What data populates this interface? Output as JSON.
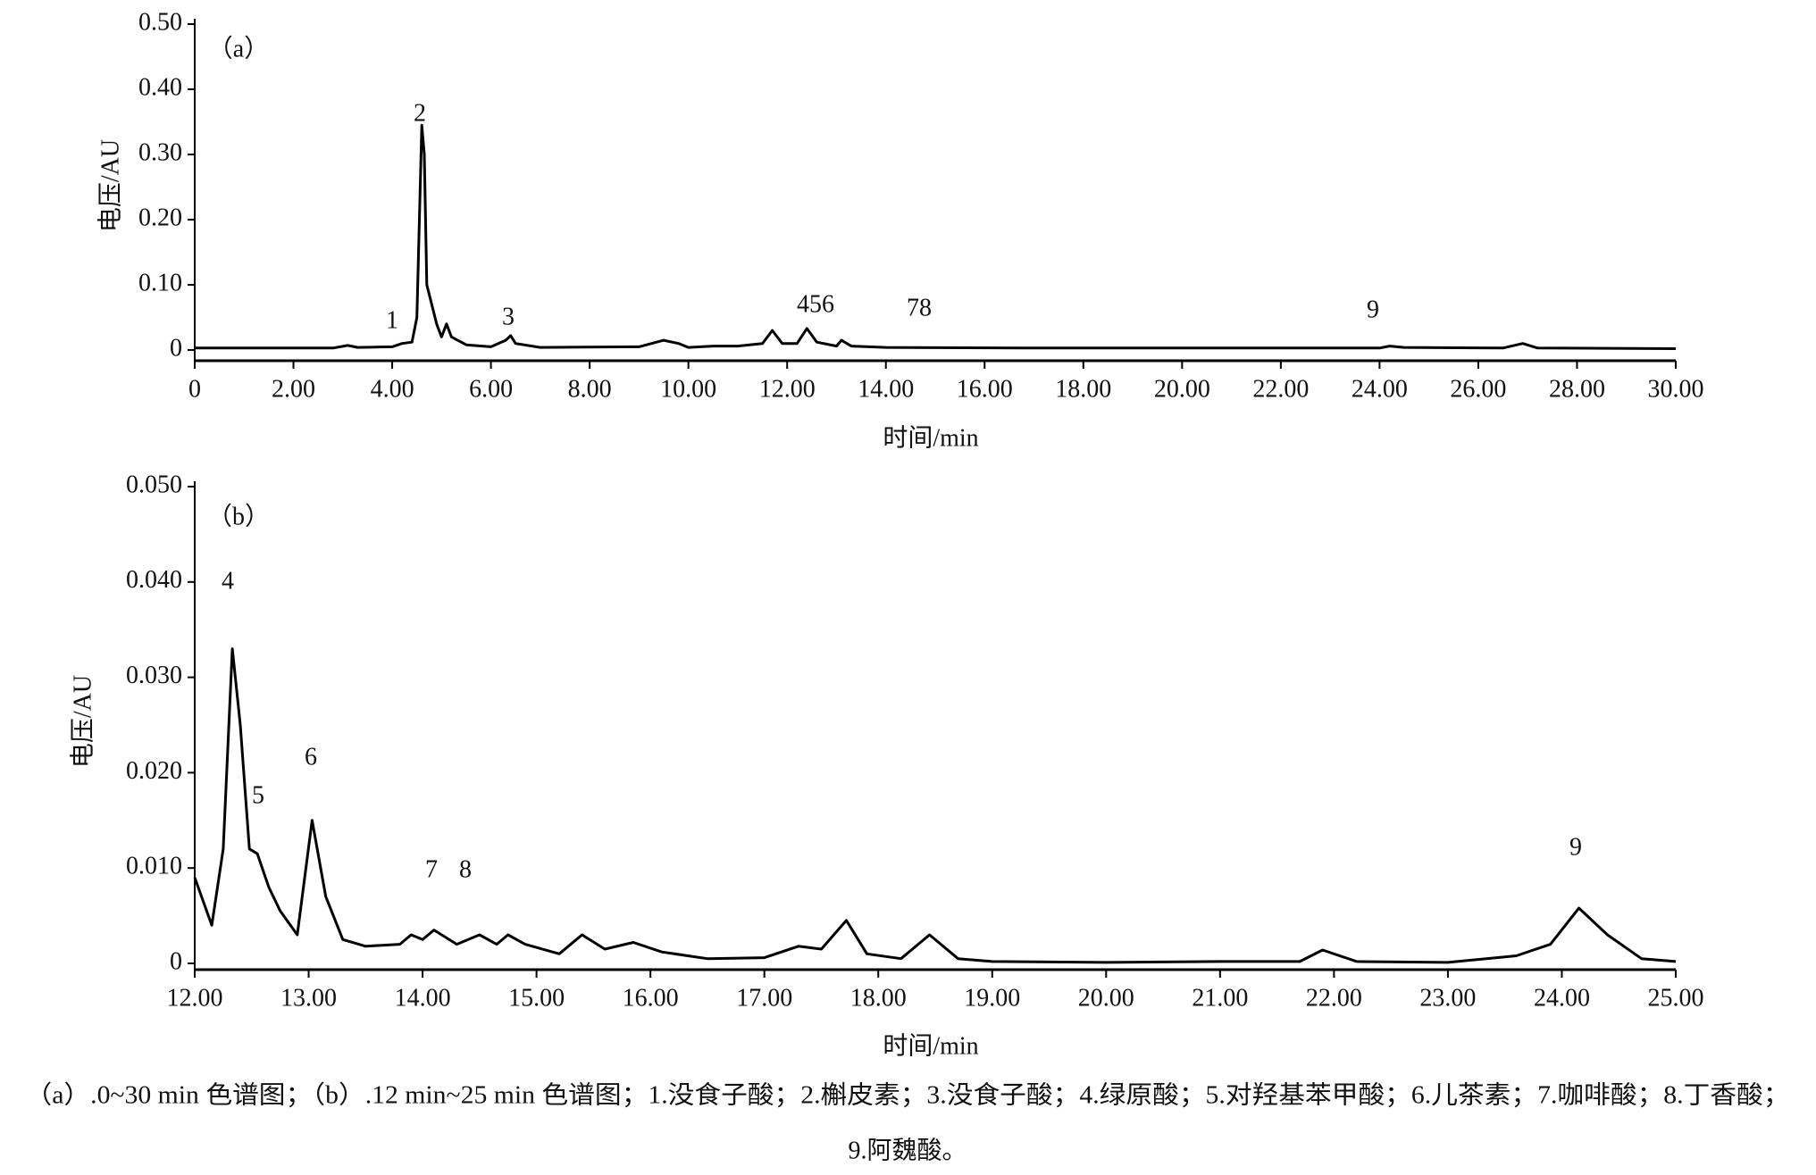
{
  "chart_data": [
    {
      "type": "line",
      "xlabel": "时间/min",
      "ylabel": "电压/AU",
      "annotations": [
        "（a）",
        "1",
        "2",
        "3",
        "456",
        "78",
        "9"
      ],
      "x": [
        0,
        2.8,
        3.1,
        3.3,
        4.0,
        4.2,
        4.4,
        4.5,
        4.6,
        4.65,
        4.7,
        4.8,
        4.9,
        5.0,
        5.1,
        5.2,
        5.5,
        6.0,
        6.3,
        6.4,
        6.5,
        7.0,
        9.0,
        9.5,
        9.8,
        10.0,
        10.5,
        11.0,
        11.5,
        11.7,
        11.9,
        12.2,
        12.4,
        12.6,
        13.0,
        13.1,
        13.3,
        14.0,
        17.0,
        24.0,
        24.2,
        24.5,
        26.5,
        26.9,
        27.2,
        30.0
      ],
      "values": [
        0.003,
        0.003,
        0.007,
        0.004,
        0.005,
        0.01,
        0.012,
        0.05,
        0.345,
        0.3,
        0.1,
        0.07,
        0.04,
        0.02,
        0.04,
        0.02,
        0.008,
        0.005,
        0.015,
        0.022,
        0.01,
        0.004,
        0.005,
        0.015,
        0.01,
        0.004,
        0.006,
        0.006,
        0.01,
        0.03,
        0.01,
        0.01,
        0.033,
        0.012,
        0.006,
        0.015,
        0.006,
        0.004,
        0.003,
        0.003,
        0.006,
        0.004,
        0.003,
        0.01,
        0.003,
        0.002
      ],
      "color": "#000000",
      "xlim": [
        0,
        30
      ],
      "xticks": [
        0,
        {
          "value": 2,
          "label": "2.00"
        },
        {
          "value": 4,
          "label": "4.00"
        },
        {
          "value": 6,
          "label": "6.00"
        },
        {
          "value": 8,
          "label": "8.00"
        },
        {
          "value": 10,
          "label": "10.00"
        },
        {
          "value": 12,
          "label": "12.00"
        },
        {
          "value": 14,
          "label": "14.00"
        },
        {
          "value": 16,
          "label": "16.00"
        },
        {
          "value": 18,
          "label": "18.00"
        },
        {
          "value": 20,
          "label": "20.00"
        },
        {
          "value": 22,
          "label": "22.00"
        },
        {
          "value": 24,
          "label": "24.00"
        },
        {
          "value": 26,
          "label": "26.00"
        },
        {
          "value": 28,
          "label": "28.00"
        },
        {
          "value": 30,
          "label": "30.00"
        }
      ],
      "ylim": [
        0,
        0.5
      ],
      "yticks": [
        0,
        {
          "value": 0.1,
          "label": "0.10"
        },
        {
          "value": 0.2,
          "label": "0.20"
        },
        {
          "value": 0.3,
          "label": "0.30"
        },
        {
          "value": 0.4,
          "label": "0.40"
        },
        {
          "value": 0.5,
          "label": "0.50"
        }
      ]
    },
    {
      "type": "line",
      "xlabel": "时间/min",
      "ylabel": "电压/AU",
      "annotations": [
        "（b）",
        "4",
        "5",
        "6",
        "7",
        "8",
        "9"
      ],
      "x": [
        12.0,
        12.15,
        12.25,
        12.33,
        12.4,
        12.48,
        12.55,
        12.65,
        12.75,
        12.9,
        13.03,
        13.15,
        13.3,
        13.5,
        13.8,
        13.9,
        14.0,
        14.1,
        14.3,
        14.5,
        14.65,
        14.75,
        14.9,
        15.2,
        15.4,
        15.6,
        15.85,
        16.1,
        16.5,
        17.0,
        17.3,
        17.5,
        17.72,
        17.9,
        18.2,
        18.45,
        18.7,
        19.0,
        20.0,
        21.0,
        21.7,
        21.9,
        22.2,
        23.0,
        23.6,
        23.9,
        24.15,
        24.4,
        24.7,
        25.0
      ],
      "values": [
        0.009,
        0.004,
        0.012,
        0.033,
        0.025,
        0.012,
        0.0115,
        0.008,
        0.0055,
        0.003,
        0.015,
        0.007,
        0.0025,
        0.0018,
        0.002,
        0.003,
        0.0025,
        0.0035,
        0.002,
        0.003,
        0.002,
        0.003,
        0.002,
        0.001,
        0.003,
        0.0015,
        0.0022,
        0.0012,
        0.0005,
        0.0006,
        0.0018,
        0.0015,
        0.0045,
        0.001,
        0.0005,
        0.003,
        0.0005,
        0.0002,
        0.0001,
        0.0002,
        0.0002,
        0.0014,
        0.0002,
        0.0001,
        0.0008,
        0.002,
        0.0058,
        0.003,
        0.0005,
        0.0002
      ],
      "color": "#000000",
      "xlim": [
        12,
        25
      ],
      "xticks": [
        {
          "value": 12,
          "label": "12.00"
        },
        {
          "value": 13,
          "label": "13.00"
        },
        {
          "value": 14,
          "label": "14.00"
        },
        {
          "value": 15,
          "label": "15.00"
        },
        {
          "value": 16,
          "label": "16.00"
        },
        {
          "value": 17,
          "label": "17.00"
        },
        {
          "value": 18,
          "label": "18.00"
        },
        {
          "value": 19,
          "label": "19.00"
        },
        {
          "value": 20,
          "label": "20.00"
        },
        {
          "value": 21,
          "label": "21.00"
        },
        {
          "value": 22,
          "label": "22.00"
        },
        {
          "value": 23,
          "label": "23.00"
        },
        {
          "value": 24,
          "label": "24.00"
        },
        {
          "value": 25,
          "label": "25.00"
        }
      ],
      "ylim": [
        0,
        0.05
      ],
      "yticks": [
        0,
        {
          "value": 0.01,
          "label": "0.010"
        },
        {
          "value": 0.02,
          "label": "0.020"
        },
        {
          "value": 0.03,
          "label": "0.030"
        },
        {
          "value": 0.04,
          "label": "0.040"
        },
        {
          "value": 0.05,
          "label": "0.050"
        }
      ]
    }
  ],
  "caption": [
    "（a）.0~30 min 色谱图；（b）.12 min~25 min 色谱图；1.没食子酸；2.槲皮素；3.没食子酸；4.绿原酸；5.对羟基苯甲酸；6.儿茶素；7.咖啡酸；8.丁香酸；",
    "9.阿魏酸。"
  ]
}
